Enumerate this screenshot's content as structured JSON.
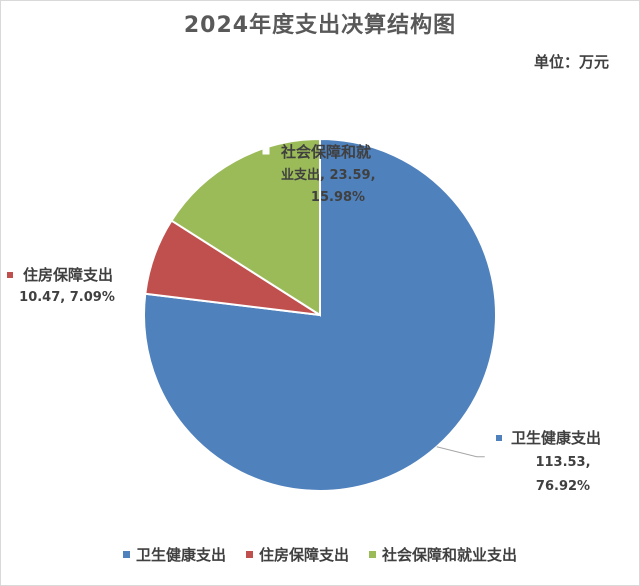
{
  "unit_label": "单位：万元",
  "colors": {
    "health": "#4f81bd",
    "housing": "#c0504d",
    "social": "#9bbb59"
  },
  "chart_data": {
    "type": "pie",
    "title": "2024年度支出决算结构图",
    "unit": "万元",
    "legend_position": "bottom",
    "slices": [
      {
        "label": "卫生健康支出",
        "value_text": "113.53",
        "percent_text": "76.92%",
        "value": 113.53,
        "percent": 76.92
      },
      {
        "label": "住房保障支出",
        "value_text": "10.47",
        "percent_text": "7.09%",
        "value": 10.47,
        "percent": 7.09
      },
      {
        "label": "社会保障和就业支出",
        "value_text": "23.59",
        "percent_text": "15.98%",
        "value": 23.59,
        "percent": 15.98
      }
    ]
  }
}
